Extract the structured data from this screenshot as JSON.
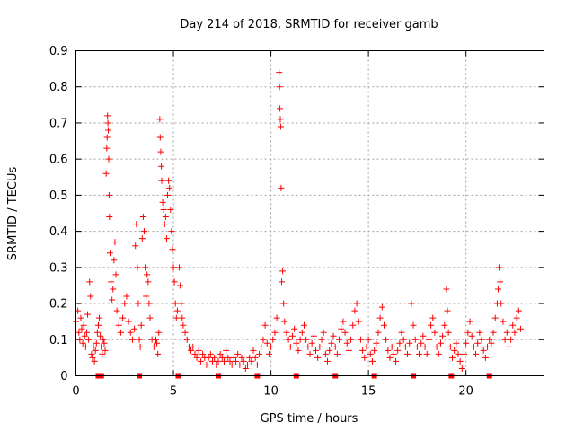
{
  "chart_data": {
    "type": "scatter",
    "title": "Day 214 of 2018, SRMTID for receiver gamb",
    "xlabel": "GPS time / hours",
    "ylabel": "SRMTID / TECUs",
    "xlim": [
      0,
      24
    ],
    "ylim": [
      0,
      0.9
    ],
    "xticks": [
      0,
      5,
      10,
      15,
      20
    ],
    "yticks": [
      0,
      0.1,
      0.2,
      0.3,
      0.4,
      0.5,
      0.6,
      0.7,
      0.8,
      0.9
    ],
    "xtick_labels": [
      "0",
      "5",
      "10",
      "15",
      "20"
    ],
    "ytick_labels": [
      "0",
      "0.1",
      "0.2",
      "0.3",
      "0.4",
      "0.5",
      "0.6",
      "0.7",
      "0.8",
      "0.9"
    ],
    "grid": true,
    "color": "#ff0000",
    "marker": "plus",
    "series": [
      {
        "name": "SRMTID",
        "points": [
          [
            0.0,
            0.15
          ],
          [
            0.1,
            0.18
          ],
          [
            0.15,
            0.12
          ],
          [
            0.2,
            0.1
          ],
          [
            0.25,
            0.16
          ],
          [
            0.3,
            0.13
          ],
          [
            0.35,
            0.09
          ],
          [
            0.4,
            0.14
          ],
          [
            0.45,
            0.11
          ],
          [
            0.5,
            0.08
          ],
          [
            0.55,
            0.12
          ],
          [
            0.6,
            0.17
          ],
          [
            0.65,
            0.1
          ],
          [
            0.7,
            0.26
          ],
          [
            0.75,
            0.22
          ],
          [
            0.8,
            0.06
          ],
          [
            0.85,
            0.05
          ],
          [
            0.9,
            0.08
          ],
          [
            0.95,
            0.04
          ],
          [
            1.0,
            0.07
          ],
          [
            1.05,
            0.09
          ],
          [
            1.1,
            0.12
          ],
          [
            1.15,
            0.14
          ],
          [
            1.2,
            0.16
          ],
          [
            1.25,
            0.11
          ],
          [
            1.3,
            0.08
          ],
          [
            1.35,
            0.06
          ],
          [
            1.4,
            0.1
          ],
          [
            1.45,
            0.09
          ],
          [
            1.5,
            0.07
          ],
          [
            1.55,
            0.56
          ],
          [
            1.58,
            0.63
          ],
          [
            1.6,
            0.66
          ],
          [
            1.62,
            0.72
          ],
          [
            1.64,
            0.7
          ],
          [
            1.66,
            0.68
          ],
          [
            1.68,
            0.6
          ],
          [
            1.7,
            0.5
          ],
          [
            1.72,
            0.44
          ],
          [
            1.75,
            0.34
          ],
          [
            1.8,
            0.26
          ],
          [
            1.85,
            0.21
          ],
          [
            1.9,
            0.24
          ],
          [
            1.95,
            0.32
          ],
          [
            2.0,
            0.37
          ],
          [
            2.05,
            0.28
          ],
          [
            2.1,
            0.18
          ],
          [
            2.2,
            0.14
          ],
          [
            2.3,
            0.12
          ],
          [
            2.4,
            0.16
          ],
          [
            2.5,
            0.2
          ],
          [
            2.6,
            0.22
          ],
          [
            2.7,
            0.15
          ],
          [
            2.8,
            0.12
          ],
          [
            2.9,
            0.1
          ],
          [
            3.0,
            0.13
          ],
          [
            3.05,
            0.36
          ],
          [
            3.1,
            0.42
          ],
          [
            3.15,
            0.3
          ],
          [
            3.2,
            0.2
          ],
          [
            3.25,
            0.1
          ],
          [
            3.3,
            0.08
          ],
          [
            3.35,
            0.14
          ],
          [
            3.4,
            0.38
          ],
          [
            3.45,
            0.44
          ],
          [
            3.5,
            0.4
          ],
          [
            3.55,
            0.3
          ],
          [
            3.6,
            0.22
          ],
          [
            3.65,
            0.28
          ],
          [
            3.7,
            0.26
          ],
          [
            3.75,
            0.2
          ],
          [
            3.8,
            0.16
          ],
          [
            3.9,
            0.1
          ],
          [
            4.0,
            0.08
          ],
          [
            4.1,
            0.1
          ],
          [
            4.15,
            0.09
          ],
          [
            4.2,
            0.06
          ],
          [
            4.25,
            0.12
          ],
          [
            4.3,
            0.71
          ],
          [
            4.32,
            0.66
          ],
          [
            4.35,
            0.62
          ],
          [
            4.38,
            0.58
          ],
          [
            4.4,
            0.54
          ],
          [
            4.45,
            0.48
          ],
          [
            4.5,
            0.46
          ],
          [
            4.55,
            0.42
          ],
          [
            4.6,
            0.44
          ],
          [
            4.65,
            0.38
          ],
          [
            4.7,
            0.5
          ],
          [
            4.75,
            0.54
          ],
          [
            4.8,
            0.52
          ],
          [
            4.85,
            0.46
          ],
          [
            4.9,
            0.4
          ],
          [
            4.95,
            0.35
          ],
          [
            5.0,
            0.3
          ],
          [
            5.05,
            0.26
          ],
          [
            5.1,
            0.2
          ],
          [
            5.15,
            0.16
          ],
          [
            5.2,
            0.18
          ],
          [
            5.3,
            0.3
          ],
          [
            5.35,
            0.25
          ],
          [
            5.4,
            0.2
          ],
          [
            5.45,
            0.16
          ],
          [
            5.5,
            0.14
          ],
          [
            5.6,
            0.12
          ],
          [
            5.7,
            0.1
          ],
          [
            5.8,
            0.08
          ],
          [
            5.9,
            0.07
          ],
          [
            6.0,
            0.08
          ],
          [
            6.1,
            0.06
          ],
          [
            6.2,
            0.05
          ],
          [
            6.3,
            0.07
          ],
          [
            6.4,
            0.04
          ],
          [
            6.5,
            0.06
          ],
          [
            6.6,
            0.05
          ],
          [
            6.7,
            0.03
          ],
          [
            6.8,
            0.05
          ],
          [
            6.9,
            0.06
          ],
          [
            7.0,
            0.04
          ],
          [
            7.1,
            0.05
          ],
          [
            7.2,
            0.03
          ],
          [
            7.3,
            0.04
          ],
          [
            7.4,
            0.06
          ],
          [
            7.5,
            0.05
          ],
          [
            7.6,
            0.04
          ],
          [
            7.7,
            0.07
          ],
          [
            7.8,
            0.05
          ],
          [
            7.9,
            0.04
          ],
          [
            8.0,
            0.03
          ],
          [
            8.1,
            0.05
          ],
          [
            8.2,
            0.04
          ],
          [
            8.3,
            0.06
          ],
          [
            8.4,
            0.03
          ],
          [
            8.5,
            0.05
          ],
          [
            8.6,
            0.04
          ],
          [
            8.7,
            0.02
          ],
          [
            8.8,
            0.03
          ],
          [
            8.9,
            0.05
          ],
          [
            9.0,
            0.04
          ],
          [
            9.1,
            0.07
          ],
          [
            9.2,
            0.05
          ],
          [
            9.3,
            0.03
          ],
          [
            9.4,
            0.06
          ],
          [
            9.5,
            0.08
          ],
          [
            9.6,
            0.1
          ],
          [
            9.7,
            0.14
          ],
          [
            9.8,
            0.09
          ],
          [
            9.9,
            0.06
          ],
          [
            10.0,
            0.08
          ],
          [
            10.1,
            0.1
          ],
          [
            10.2,
            0.12
          ],
          [
            10.3,
            0.16
          ],
          [
            10.42,
            0.84
          ],
          [
            10.44,
            0.8
          ],
          [
            10.46,
            0.74
          ],
          [
            10.48,
            0.71
          ],
          [
            10.5,
            0.69
          ],
          [
            10.52,
            0.52
          ],
          [
            10.55,
            0.26
          ],
          [
            10.6,
            0.29
          ],
          [
            10.65,
            0.2
          ],
          [
            10.7,
            0.15
          ],
          [
            10.8,
            0.12
          ],
          [
            10.9,
            0.1
          ],
          [
            11.0,
            0.08
          ],
          [
            11.1,
            0.11
          ],
          [
            11.2,
            0.13
          ],
          [
            11.3,
            0.09
          ],
          [
            11.4,
            0.07
          ],
          [
            11.5,
            0.1
          ],
          [
            11.6,
            0.12
          ],
          [
            11.7,
            0.14
          ],
          [
            11.8,
            0.1
          ],
          [
            11.9,
            0.08
          ],
          [
            12.0,
            0.06
          ],
          [
            12.1,
            0.09
          ],
          [
            12.2,
            0.11
          ],
          [
            12.3,
            0.07
          ],
          [
            12.4,
            0.05
          ],
          [
            12.5,
            0.08
          ],
          [
            12.6,
            0.1
          ],
          [
            12.7,
            0.12
          ],
          [
            12.8,
            0.06
          ],
          [
            12.9,
            0.04
          ],
          [
            13.0,
            0.07
          ],
          [
            13.1,
            0.09
          ],
          [
            13.2,
            0.11
          ],
          [
            13.3,
            0.08
          ],
          [
            13.4,
            0.06
          ],
          [
            13.5,
            0.1
          ],
          [
            13.6,
            0.13
          ],
          [
            13.7,
            0.15
          ],
          [
            13.8,
            0.12
          ],
          [
            13.9,
            0.09
          ],
          [
            14.0,
            0.07
          ],
          [
            14.1,
            0.1
          ],
          [
            14.2,
            0.14
          ],
          [
            14.3,
            0.18
          ],
          [
            14.4,
            0.2
          ],
          [
            14.5,
            0.15
          ],
          [
            14.6,
            0.1
          ],
          [
            14.7,
            0.07
          ],
          [
            14.8,
            0.05
          ],
          [
            14.9,
            0.08
          ],
          [
            15.0,
            0.1
          ],
          [
            15.1,
            0.06
          ],
          [
            15.2,
            0.04
          ],
          [
            15.3,
            0.07
          ],
          [
            15.4,
            0.09
          ],
          [
            15.5,
            0.12
          ],
          [
            15.6,
            0.16
          ],
          [
            15.7,
            0.19
          ],
          [
            15.8,
            0.14
          ],
          [
            15.9,
            0.1
          ],
          [
            16.0,
            0.07
          ],
          [
            16.1,
            0.05
          ],
          [
            16.2,
            0.08
          ],
          [
            16.3,
            0.06
          ],
          [
            16.4,
            0.04
          ],
          [
            16.5,
            0.07
          ],
          [
            16.6,
            0.09
          ],
          [
            16.7,
            0.12
          ],
          [
            16.8,
            0.1
          ],
          [
            16.9,
            0.08
          ],
          [
            17.0,
            0.06
          ],
          [
            17.1,
            0.09
          ],
          [
            17.2,
            0.2
          ],
          [
            17.3,
            0.14
          ],
          [
            17.4,
            0.1
          ],
          [
            17.5,
            0.08
          ],
          [
            17.6,
            0.06
          ],
          [
            17.7,
            0.09
          ],
          [
            17.8,
            0.11
          ],
          [
            17.9,
            0.08
          ],
          [
            18.0,
            0.06
          ],
          [
            18.1,
            0.1
          ],
          [
            18.2,
            0.14
          ],
          [
            18.3,
            0.16
          ],
          [
            18.4,
            0.12
          ],
          [
            18.5,
            0.08
          ],
          [
            18.6,
            0.06
          ],
          [
            18.7,
            0.09
          ],
          [
            18.8,
            0.11
          ],
          [
            18.9,
            0.14
          ],
          [
            19.0,
            0.24
          ],
          [
            19.05,
            0.18
          ],
          [
            19.1,
            0.12
          ],
          [
            19.2,
            0.08
          ],
          [
            19.3,
            0.05
          ],
          [
            19.4,
            0.07
          ],
          [
            19.5,
            0.09
          ],
          [
            19.6,
            0.06
          ],
          [
            19.7,
            0.04
          ],
          [
            19.8,
            0.02
          ],
          [
            19.9,
            0.06
          ],
          [
            20.0,
            0.09
          ],
          [
            20.1,
            0.12
          ],
          [
            20.2,
            0.15
          ],
          [
            20.3,
            0.11
          ],
          [
            20.4,
            0.08
          ],
          [
            20.5,
            0.06
          ],
          [
            20.6,
            0.09
          ],
          [
            20.7,
            0.12
          ],
          [
            20.8,
            0.1
          ],
          [
            20.9,
            0.07
          ],
          [
            21.0,
            0.05
          ],
          [
            21.1,
            0.08
          ],
          [
            21.2,
            0.1
          ],
          [
            21.3,
            0.09
          ],
          [
            21.4,
            0.12
          ],
          [
            21.5,
            0.16
          ],
          [
            21.6,
            0.2
          ],
          [
            21.65,
            0.24
          ],
          [
            21.7,
            0.3
          ],
          [
            21.75,
            0.26
          ],
          [
            21.8,
            0.2
          ],
          [
            21.9,
            0.15
          ],
          [
            22.0,
            0.1
          ],
          [
            22.1,
            0.12
          ],
          [
            22.2,
            0.08
          ],
          [
            22.3,
            0.1
          ],
          [
            22.4,
            0.14
          ],
          [
            22.5,
            0.12
          ],
          [
            22.6,
            0.16
          ],
          [
            22.7,
            0.18
          ],
          [
            22.8,
            0.13
          ]
        ]
      }
    ],
    "axis_markers": [
      1.15,
      1.3,
      3.25,
      5.25,
      7.3,
      9.3,
      11.3,
      13.3,
      15.3,
      17.3,
      19.25,
      21.2
    ]
  }
}
